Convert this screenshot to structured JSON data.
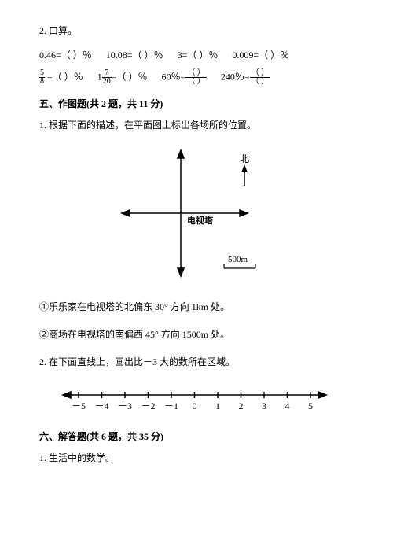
{
  "q2_title": "2. 口算。",
  "row1": {
    "a": "0.46=（  ）％",
    "b": "10.08=（  ）％",
    "c": "3=（  ）％",
    "d": "0.009=（  ）％"
  },
  "row2": {
    "a_pre": "",
    "a_post": " =（  ）％",
    "b_pre": "1",
    "b_post": "=（  ）％",
    "c": "60％=",
    "d": "240％="
  },
  "frac58_n": "5",
  "frac58_d": "8",
  "frac720_n": "7",
  "frac720_d": "20",
  "blank_top": "（  ）",
  "blank_bot": "（  ）",
  "section5": "五、作图题(共 2 题，共 11 分)",
  "q5_1": "1. 根据下面的描述，在平面图上标出各场所的位置。",
  "compass": {
    "north": "北",
    "label": "电视塔",
    "scale": "500m",
    "stroke": "#000000",
    "tick": 6
  },
  "q5_1a": "①乐乐家在电视塔的北偏东 30° 方向 1km 处。",
  "q5_1b": "②商场在电视塔的南偏西 45° 方向 1500m 处。",
  "q5_2": "2. 在下面直线上，画出比－3 大的数所在区域。",
  "numberline": {
    "min": -5,
    "max": 5,
    "stroke": "#000000"
  },
  "section6": "六、解答题(共 6 题，共 35 分)",
  "q6_1": "1. 生活中的数学。"
}
